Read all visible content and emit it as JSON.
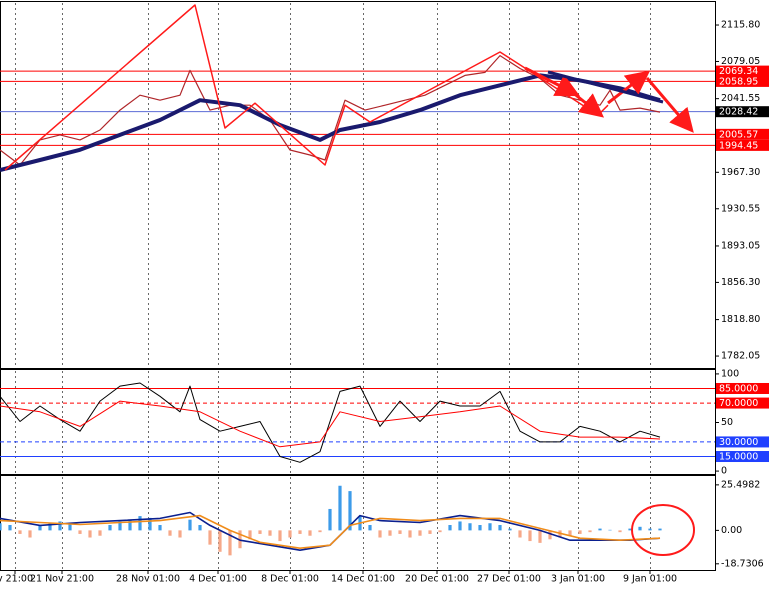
{
  "chart_data": [
    {
      "type": "line",
      "ylim": [
        1770,
        2138
      ],
      "yticks": [
        {
          "value": 2115.8,
          "label": "2115.80"
        },
        2079.05,
        2041.55,
        {
          "value": 1967.3,
          "label": "1967.30"
        },
        1930.55,
        1893.05,
        {
          "value": 1856.3,
          "label": "1856.30"
        },
        {
          "value": 1818.8,
          "label": "1818.80"
        },
        1782.05
      ],
      "grid": true,
      "levels": [
        {
          "value": 2069.34,
          "color": "#ff0000",
          "box": "#ff0000"
        },
        {
          "value": 2058.95,
          "color": "#ff0000",
          "box": "#ff0000"
        },
        {
          "value": 2028.42,
          "color": "#5b6bd6",
          "box": "#000000"
        },
        {
          "value": 2005.57,
          "color": "#ff0000",
          "box": "#ff0000"
        },
        {
          "value": 1994.45,
          "color": "#ff0000",
          "box": "#ff0000"
        }
      ],
      "series": [
        {
          "color": "#b0262a",
          "line_width": 1.2,
          "x": [
            0,
            2,
            4,
            6,
            8,
            10,
            12,
            14,
            16,
            18,
            19,
            20,
            21,
            23,
            25,
            27,
            29,
            31,
            32.5,
            33.5,
            34.5,
            36.5,
            38.5,
            40.5,
            42.5,
            44.5,
            46.5,
            48.5,
            50,
            52,
            54,
            56,
            58,
            60,
            61,
            62,
            64,
            66
          ],
          "values": [
            1989.8,
            1974.7,
            2000,
            2005,
            2000,
            2010,
            2030,
            2045,
            2040,
            2045,
            2070,
            2050,
            2030,
            2035,
            2035,
            2020,
            1989.8,
            1984.8,
            1979.7,
            2010,
            2040,
            2030,
            2035,
            2040,
            2045,
            2055,
            2065,
            2068,
            2085,
            2072,
            2062,
            2045,
            2040,
            2035,
            2050,
            2030,
            2032,
            2028
          ]
        },
        {
          "color": "#1a1a6e",
          "line_width": 4,
          "x": [
            0,
            4,
            8,
            12,
            16,
            20,
            24,
            28,
            32,
            34,
            38,
            42,
            46,
            50,
            54,
            58,
            62,
            66
          ],
          "values": [
            1969.6,
            1979.7,
            1990,
            2005,
            2020,
            2040,
            2035,
            2015,
            2000,
            2010,
            2018,
            2030,
            2045,
            2055,
            2065,
            2060,
            2052,
            2040
          ]
        },
        {
          "color": "#ff1a1a",
          "line_width": 1.5,
          "x": [
            0.5,
            19.5,
            22.5,
            25.5,
            32.5,
            34.5,
            37,
            50,
            59.8,
            60.8
          ],
          "values": [
            1969.6,
            2136,
            2012,
            2037,
            1974.7,
            2035,
            2018,
            2088.6,
            2025,
            2035
          ]
        }
      ]
    },
    {
      "type": "line",
      "ylim": [
        -3,
        103
      ],
      "yticks": [
        100,
        50,
        0
      ],
      "grid": true,
      "levels": [
        {
          "value": 85,
          "label": "85.0000",
          "color": "#ff0000",
          "box": "#ff0000"
        },
        {
          "value": 70,
          "label": "70.0000",
          "color": "#ff0000",
          "box": "#ff0000",
          "dash": true
        },
        {
          "value": 30,
          "label": "30.0000",
          "color": "#2040ff",
          "box": "#2040ff",
          "dash": true
        },
        {
          "value": 15,
          "label": "15.0000",
          "color": "#2040ff",
          "box": "#2040ff"
        }
      ],
      "series": [
        {
          "color": "#000000",
          "line_width": 1,
          "x": [
            0,
            2,
            4,
            6,
            8,
            10,
            12,
            14,
            16,
            18,
            19,
            20,
            22,
            24,
            26,
            28,
            30,
            32,
            34,
            36,
            38,
            40,
            42,
            44,
            46,
            48,
            50,
            52,
            54,
            56,
            58,
            60,
            62,
            64,
            66
          ],
          "values": [
            77,
            51,
            67,
            53,
            41,
            72,
            87.5,
            90.6,
            77,
            61,
            87.5,
            53,
            41,
            46,
            51,
            15,
            9,
            20,
            82,
            87.5,
            46,
            72,
            51,
            72,
            67,
            67,
            82,
            41,
            30,
            30,
            46,
            41,
            30,
            41,
            35
          ]
        },
        {
          "color": "#ff0000",
          "line_width": 1,
          "x": [
            0,
            4,
            8,
            12,
            16,
            20,
            24,
            28,
            32,
            34,
            38,
            42,
            46,
            50,
            54,
            58,
            62,
            66
          ],
          "values": [
            67,
            61,
            46,
            72,
            67,
            61,
            41,
            25,
            30,
            61,
            51,
            56,
            61,
            67,
            41,
            35,
            35,
            33
          ]
        }
      ]
    },
    {
      "type": "bar",
      "ylim": [
        -22.2,
        29.9
      ],
      "yticks": [
        25.4982,
        {
          "value": 0,
          "label": "0.00"
        },
        -18.7306
      ],
      "xlim": [
        0,
        71.5
      ],
      "xticks": [
        {
          "value": 1.5,
          "label": "v 21:00"
        },
        {
          "value": 6.2,
          "label": "21 Nov 21:00"
        },
        {
          "value": 14.8,
          "label": "28 Nov 01:00"
        },
        {
          "value": 21.8,
          "label": "4 Dec 01:00"
        },
        {
          "value": 29,
          "label": "8 Dec 01:00"
        },
        {
          "value": 36.3,
          "label": "14 Dec 01:00"
        },
        {
          "value": 43.7,
          "label": "20 Dec 01:00"
        },
        {
          "value": 50.9,
          "label": "27 Dec 01:00"
        },
        {
          "value": 57.8,
          "label": "3 Jan 01:00"
        },
        {
          "value": 65,
          "label": "9 Jan 01:00"
        }
      ],
      "grid": true,
      "series": [
        {
          "type": "bar",
          "color": "#3d9be9",
          "negative_color": "#f6a889",
          "x": [
            0,
            1,
            2,
            3,
            4,
            5,
            6,
            7,
            8,
            9,
            10,
            11,
            12,
            13,
            14,
            15,
            16,
            17,
            18,
            19,
            20,
            21,
            22,
            23,
            24,
            25,
            26,
            27,
            28,
            29,
            30,
            31,
            32,
            33,
            34,
            35,
            36,
            37,
            38,
            39,
            40,
            41,
            42,
            43,
            44,
            45,
            46,
            47,
            48,
            49,
            50,
            51,
            52,
            53,
            54,
            55,
            56,
            57,
            58,
            59,
            60,
            61,
            62,
            63,
            64,
            65,
            66
          ],
          "values": [
            4,
            3,
            -2,
            -4,
            3,
            4,
            5,
            4,
            -2,
            -4,
            -3,
            3,
            5,
            6,
            8,
            7,
            3,
            -3,
            -4,
            6,
            3,
            -8,
            -12,
            -14,
            -10,
            -5,
            -2,
            -3,
            -6,
            -4,
            -2,
            -3,
            -1,
            12,
            25,
            22,
            8,
            3,
            -4,
            -3,
            -2,
            -4,
            -3,
            -2,
            -1,
            3,
            5,
            4,
            3,
            4,
            3,
            1,
            -4,
            -6,
            -7,
            -5,
            -4,
            -3,
            -2,
            -1,
            1,
            0.3,
            -1,
            1,
            2,
            1,
            1
          ]
        },
        {
          "color": "#0a1f8f",
          "line_width": 1.6,
          "x": [
            0,
            4,
            8,
            12,
            16,
            19,
            21,
            24,
            27,
            30,
            33,
            36,
            38,
            42,
            46,
            50,
            54,
            57,
            60,
            63,
            66
          ],
          "values": [
            6.7,
            2.8,
            4.4,
            5.5,
            6.7,
            10,
            2.8,
            -5.5,
            -8.3,
            -11.1,
            -8.3,
            8.3,
            5.5,
            4.4,
            8.3,
            5.5,
            0,
            -5.5,
            -5.5,
            -5.5,
            -4.4
          ]
        },
        {
          "color": "#f08c1a",
          "line_width": 1.6,
          "x": [
            0,
            4,
            8,
            12,
            16,
            20,
            23,
            26,
            30,
            33,
            35,
            38,
            42,
            46,
            50,
            54,
            58,
            62,
            66
          ],
          "values": [
            5.5,
            4.4,
            3.3,
            4.4,
            5.5,
            8.3,
            0,
            -6.7,
            -10,
            -8.3,
            2.8,
            6.7,
            5.5,
            6.7,
            6.7,
            1.1,
            -4.4,
            -5.5,
            -4.4
          ]
        }
      ]
    }
  ]
}
